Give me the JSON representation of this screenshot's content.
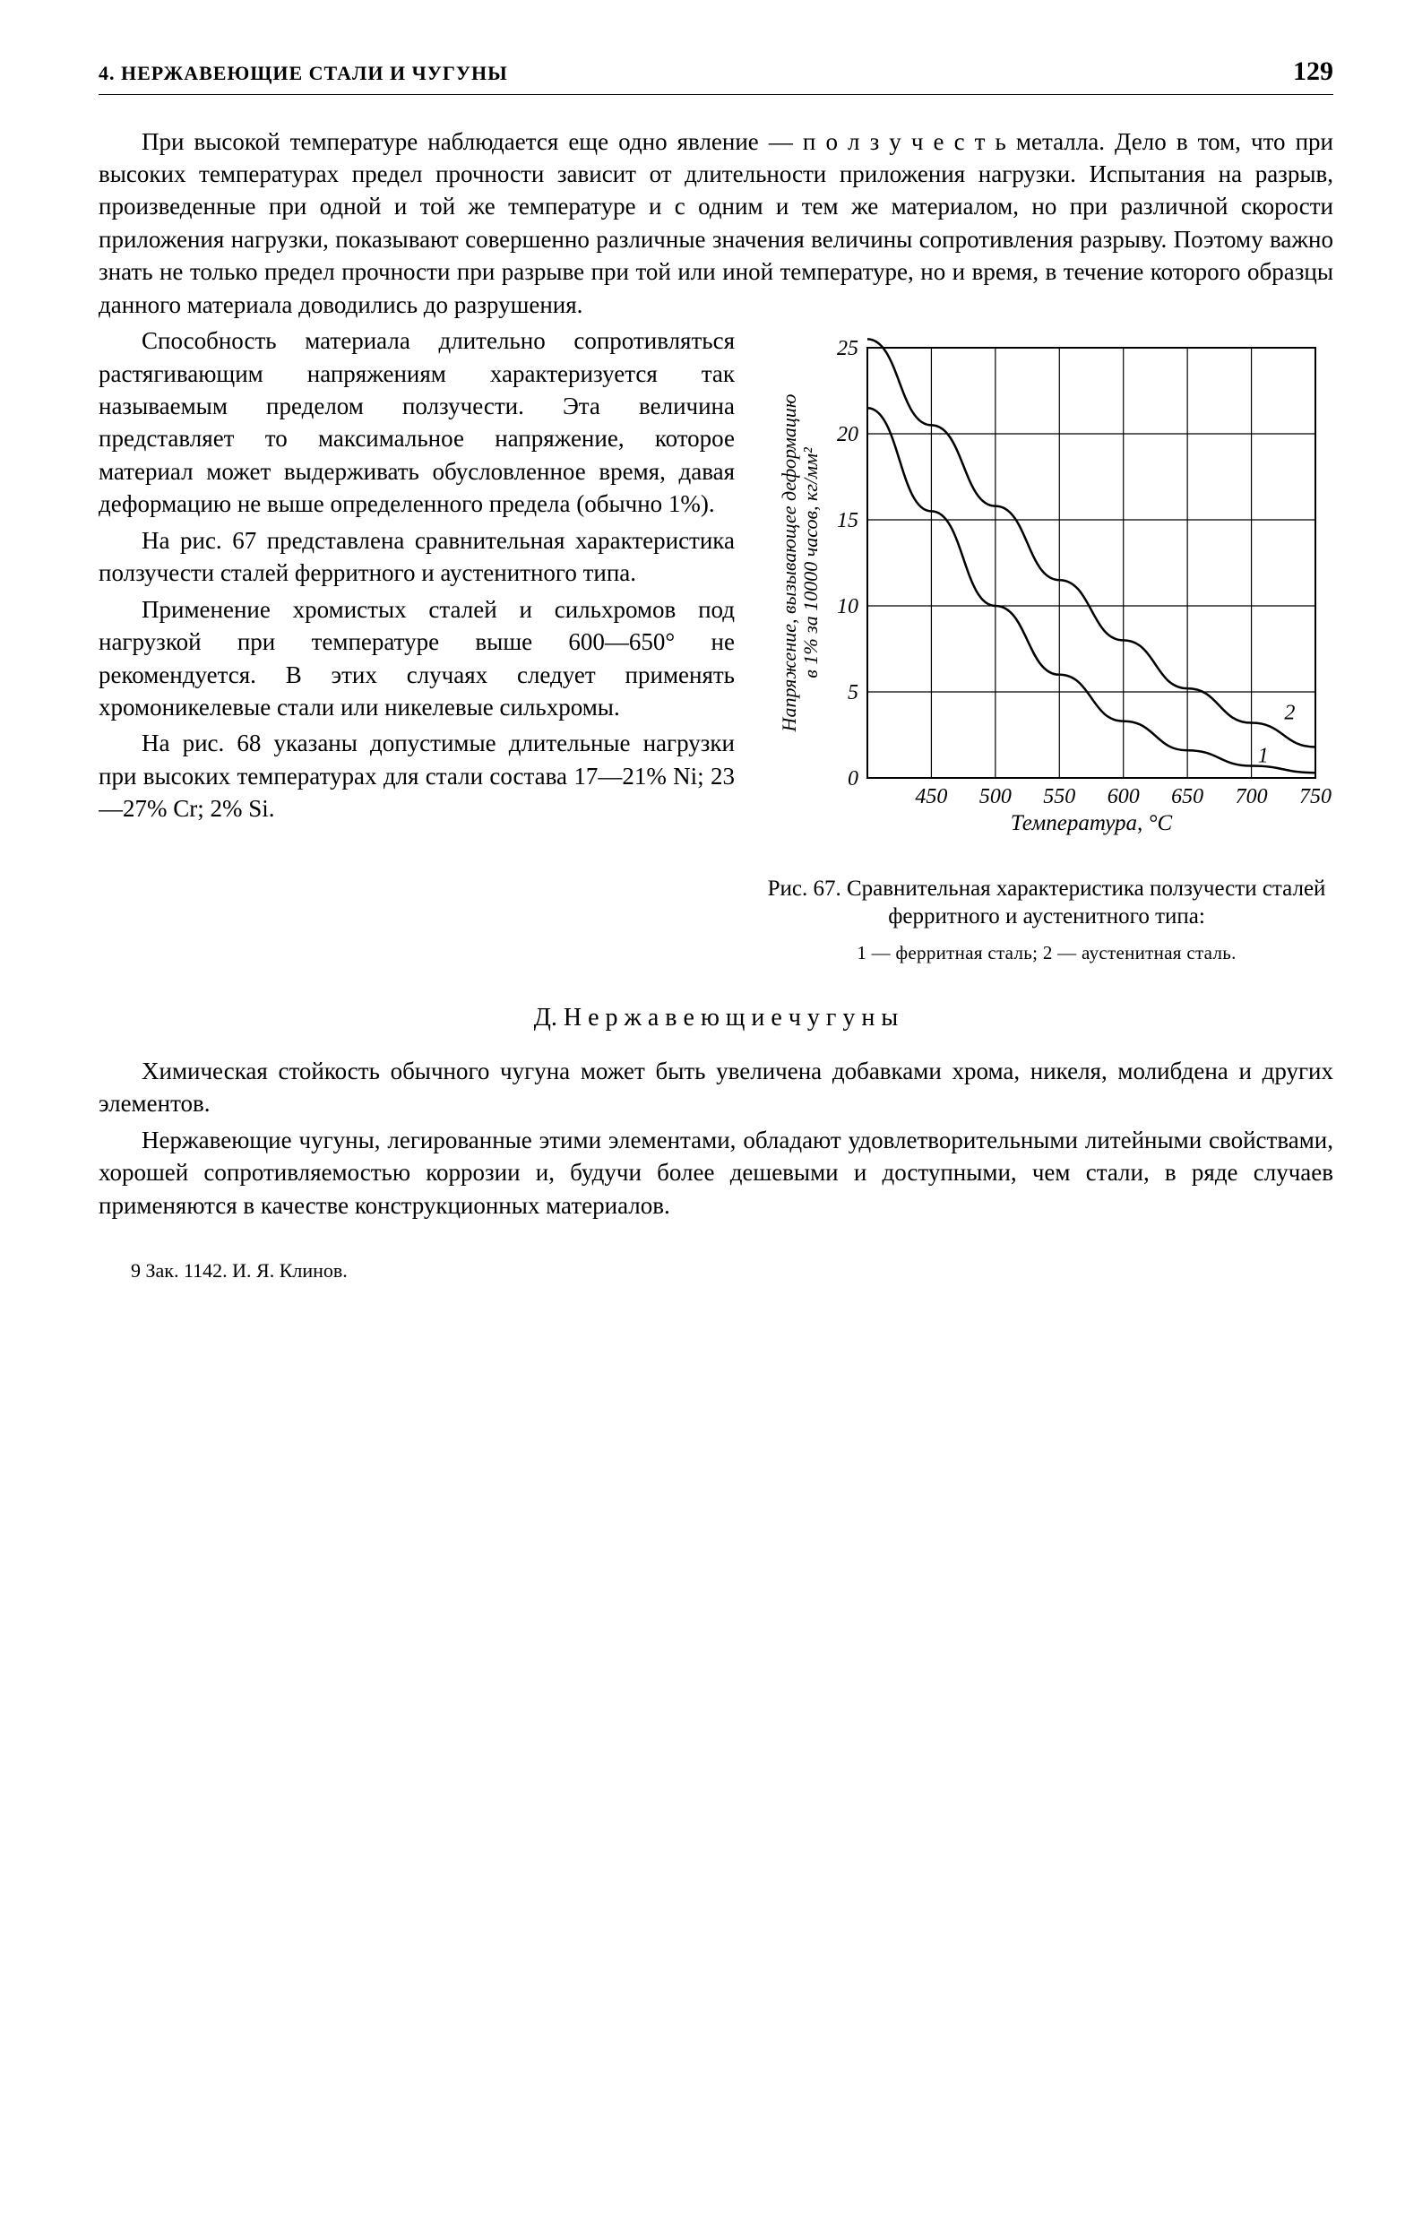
{
  "header": {
    "title": "4. НЕРЖАВЕЮЩИЕ СТАЛИ И ЧУГУНЫ",
    "page": "129"
  },
  "paragraphs": {
    "p1": "При высокой температуре наблюдается еще одно явление — п о л з у ч е с т ь металла. Дело в том, что при высоких температурах предел прочности зависит от длительности приложения нагрузки. Испытания на разрыв, произведенные при одной и той же температуре и с одним и тем же материалом, но при различной скорости приложения нагрузки, показывают совершенно различные значения величины сопротивления разрыву. Поэтому важно знать не только предел прочности при разрыве при той или иной температуре, но и время, в течение которого образцы данного материала доводились до разрушения.",
    "p2": "Способность материала длительно сопротивляться растягивающим напряжениям характеризуется так называемым пределом ползучести. Эта величина представляет то максимальное напряжение, которое материал может выдерживать обусловленное время, давая деформацию не выше определенного предела (обычно 1%).",
    "p3": "На рис. 67 представлена сравнительная характеристика ползучести сталей ферритного и аустенитного типа.",
    "p4": "Применение хромистых сталей и сильхромов под нагрузкой при температуре выше 600—650° не рекомендуется. В этих случаях следует применять хромоникелевые стали или никелевые сильхромы.",
    "p5": "На рис. 68 указаны допустимые длительные нагрузки при высоких температурах для стали состава 17—21% Ni; 23—27% Cr; 2% Si.",
    "p6": "Химическая стойкость обычного чугуна может быть увеличена добавками хрома, никеля, молибдена и других элементов.",
    "p7": "Нержавеющие чугуны, легированные этими элементами, обладают удовлетворительными литейными свойствами, хорошей сопротивляемостью коррозии и, будучи более дешевыми и доступными, чем стали, в ряде случаев применяются в качестве конструкционных материалов."
  },
  "section_d": "Д. Н е р ж а в е ю щ и е  ч у г у н ы",
  "figure": {
    "caption": "Рис. 67. Сравнительная характеристика ползучести сталей ферритного и аустенитного типа:",
    "legend": "1 — ферритная сталь; 2 — аустенитная сталь.",
    "y_label": "Напряжение, вызывающее деформацию в 1% за 10000 часов, кг/мм²",
    "x_label": "Температура, °C",
    "x_range": [
      400,
      750
    ],
    "y_range": [
      0,
      25
    ],
    "x_ticks": [
      "450",
      "500",
      "550",
      "600",
      "650",
      "700",
      "750"
    ],
    "y_ticks": [
      "0",
      "5",
      "10",
      "15",
      "20",
      "25"
    ],
    "stroke_color": "#000000",
    "grid_stroke": "#000000",
    "grid_stroke_width": 1.2,
    "curve_stroke_width": 2.5,
    "series": {
      "curve1": {
        "label": "1",
        "points": [
          [
            400,
            21.5
          ],
          [
            450,
            15.5
          ],
          [
            500,
            10
          ],
          [
            550,
            6
          ],
          [
            600,
            3.3
          ],
          [
            650,
            1.6
          ],
          [
            700,
            0.7
          ],
          [
            750,
            0.3
          ]
        ]
      },
      "curve2": {
        "label": "2",
        "points": [
          [
            400,
            25.5
          ],
          [
            450,
            20.5
          ],
          [
            500,
            15.8
          ],
          [
            550,
            11.5
          ],
          [
            600,
            8
          ],
          [
            650,
            5.2
          ],
          [
            700,
            3.2
          ],
          [
            750,
            1.8
          ]
        ]
      }
    }
  },
  "footer": "9   Зак. 1142. И. Я. Клинов."
}
